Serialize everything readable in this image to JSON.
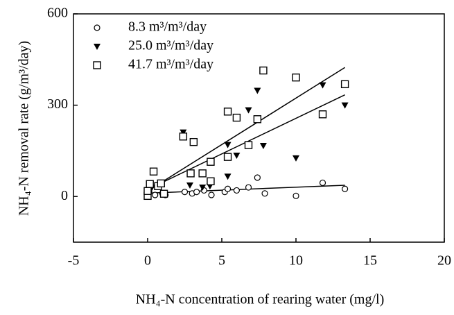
{
  "chart_data": {
    "type": "scatter",
    "x_label": "NH₄-N concentration of rearing water (mg/l)",
    "y_label": "NH₄-N removal rate (g/m³/day)",
    "xlim": [
      -5,
      20
    ],
    "xticks": [
      -5,
      0,
      5,
      10,
      15,
      20
    ],
    "ylim": [
      -150,
      600
    ],
    "yticks": [
      0,
      300,
      600
    ],
    "series": [
      {
        "name": "8.3  m³/m³/day",
        "marker": "circle",
        "color": "#000",
        "x": [
          0,
          0,
          0.1,
          0.5,
          1,
          1.2,
          2.5,
          3,
          3.3,
          3.8,
          4.3,
          5.2,
          5.4,
          6,
          6.8,
          7.4,
          7.9,
          10,
          11.8,
          13.3
        ],
        "values": [
          5,
          10,
          15,
          5,
          10,
          5,
          15,
          10,
          15,
          20,
          5,
          15,
          25,
          20,
          30,
          62,
          10,
          2,
          45,
          25
        ],
        "fit": {
          "x": [
            0,
            13.3
          ],
          "y": [
            11,
            37
          ]
        }
      },
      {
        "name": "25.0  m³/m³/day",
        "marker": "triangle",
        "color": "#000",
        "x": [
          0,
          0.3,
          2.4,
          2.85,
          3.7,
          4.2,
          5.4,
          5.4,
          6,
          6.8,
          7.4,
          7.8,
          10,
          11.8,
          13.3
        ],
        "values": [
          7,
          30,
          211,
          37,
          30,
          34,
          170,
          66,
          135,
          284,
          348,
          167,
          126,
          366,
          300
        ],
        "fit": {
          "x": [
            0,
            13.3
          ],
          "y": [
            18,
            424
          ]
        }
      },
      {
        "name": "41.7  m³/m³/day",
        "marker": "square",
        "color": "#000",
        "x": [
          0,
          0,
          0.15,
          0.4,
          0.7,
          0.9,
          1.1,
          2.4,
          3.1,
          2.9,
          3.7,
          4.25,
          4.25,
          5.4,
          6,
          5.4,
          6.8,
          7.4,
          7.8,
          10,
          11.8,
          13.3
        ],
        "values": [
          2,
          18,
          41,
          82,
          34,
          43,
          9,
          197,
          179,
          76,
          76,
          114,
          50,
          279,
          259,
          130,
          169,
          254,
          414,
          391,
          270,
          369
        ],
        "fit": {
          "x": [
            0,
            13.3
          ],
          "y": [
            23,
            334
          ]
        }
      }
    ]
  }
}
